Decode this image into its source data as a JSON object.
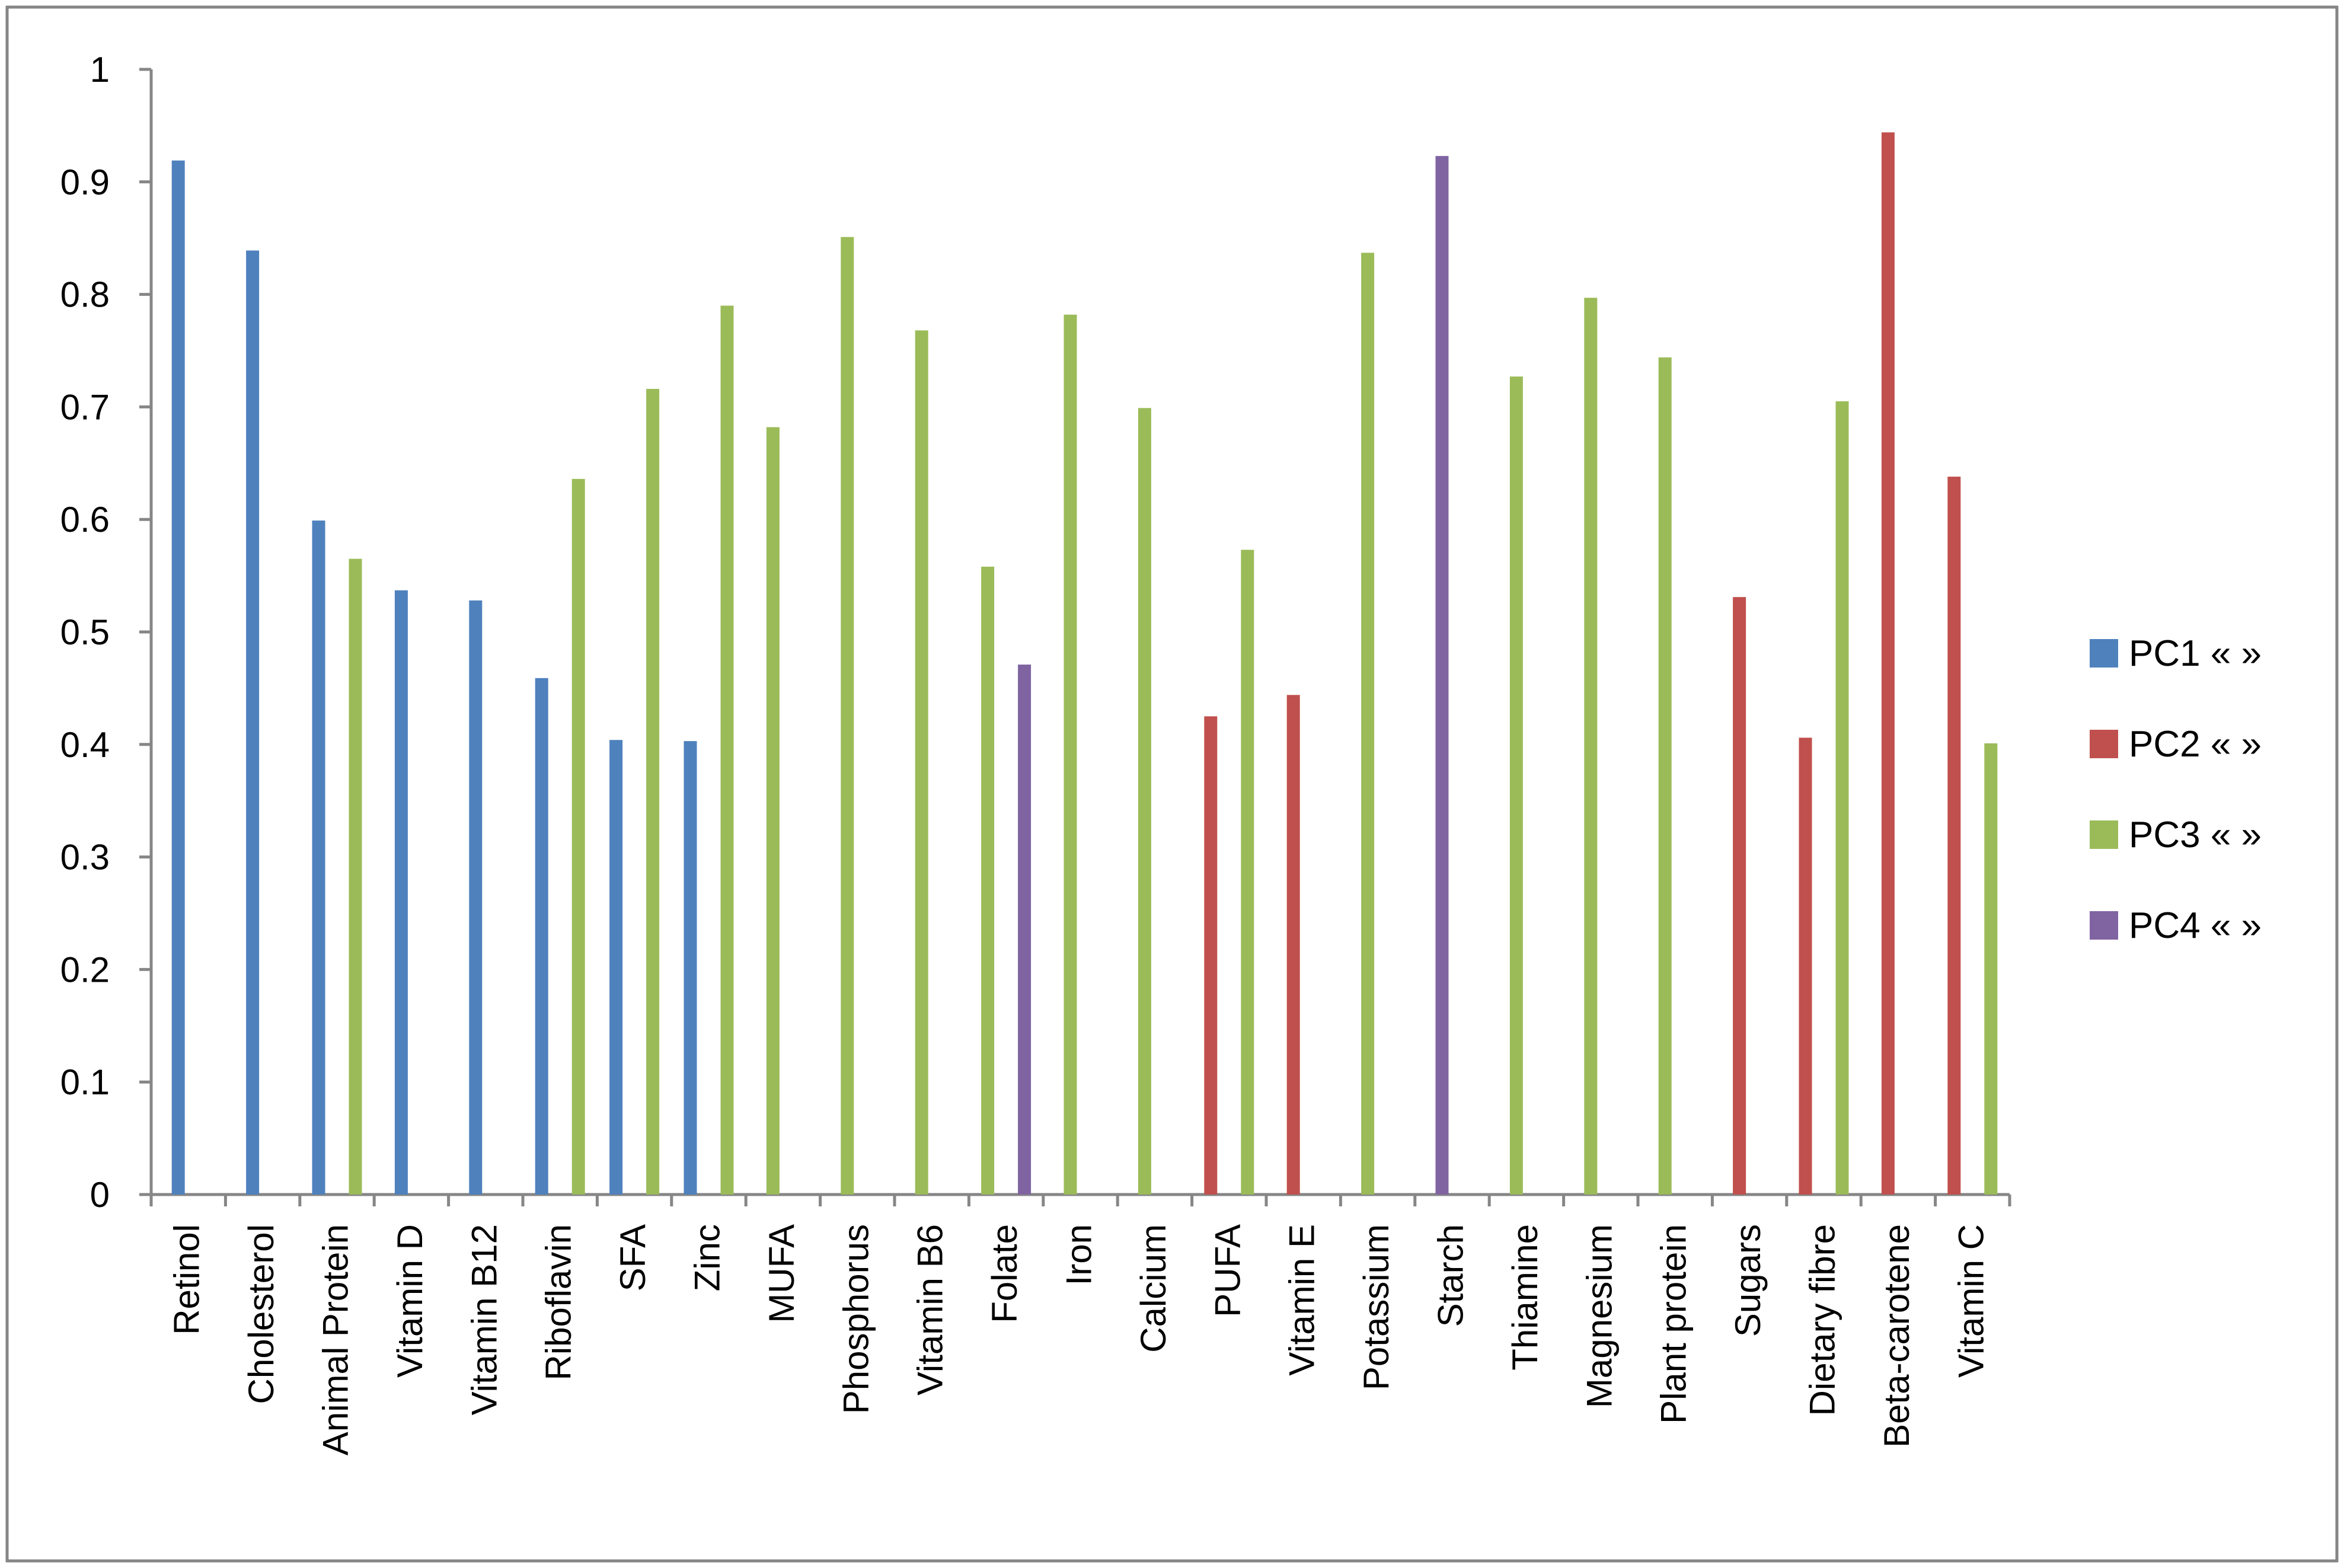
{
  "chart_data": {
    "type": "bar",
    "categories": [
      "Retinol",
      "Cholesterol",
      "Animal Protein",
      "Vitamin D",
      "Vitamin B12",
      "Riboflavin",
      "SFA",
      "Zinc",
      "MUFA",
      "Phosphorus",
      "Vitamin B6",
      "Folate",
      "Iron",
      "Calcium",
      "PUFA",
      "Vitamin E",
      "Potassium",
      "Starch",
      "Thiamine",
      "Magnesium",
      "Plant protein",
      "Sugars",
      "Dietary fibre",
      "Beta-carotene",
      "Vitamin C"
    ],
    "series": [
      {
        "name": "PC1 « »",
        "color": "#4F81BD",
        "values": [
          0.919,
          0.839,
          0.599,
          0.537,
          0.528,
          0.459,
          0.404,
          0.403,
          null,
          null,
          null,
          null,
          null,
          null,
          null,
          null,
          null,
          null,
          null,
          null,
          null,
          null,
          null,
          null,
          null
        ]
      },
      {
        "name": "PC2 « »",
        "color": "#C0504D",
        "values": [
          null,
          null,
          null,
          null,
          null,
          null,
          null,
          null,
          null,
          null,
          null,
          null,
          null,
          null,
          0.425,
          0.444,
          null,
          null,
          null,
          null,
          null,
          0.531,
          0.406,
          0.944,
          0.638
        ]
      },
      {
        "name": "PC3 « »",
        "color": "#9BBB59",
        "values": [
          null,
          null,
          0.565,
          null,
          null,
          0.636,
          0.716,
          0.79,
          0.682,
          0.851,
          0.768,
          0.558,
          0.782,
          0.699,
          0.573,
          null,
          0.837,
          null,
          0.727,
          0.797,
          0.744,
          null,
          0.705,
          null,
          0.401
        ]
      },
      {
        "name": "PC4 « »",
        "color": "#8064A2",
        "values": [
          null,
          null,
          null,
          null,
          null,
          null,
          null,
          null,
          null,
          null,
          null,
          0.471,
          null,
          null,
          null,
          null,
          null,
          0.923,
          null,
          null,
          null,
          null,
          null,
          null,
          null
        ]
      }
    ],
    "y_ticks": [
      "0",
      "0.1",
      "0.2",
      "0.3",
      "0.4",
      "0.5",
      "0.6",
      "0.7",
      "0.8",
      "0.9",
      "1"
    ],
    "ylim": [
      0,
      1
    ],
    "title": "",
    "xlabel": "",
    "ylabel": "",
    "grid": false,
    "legend_position": "right"
  }
}
